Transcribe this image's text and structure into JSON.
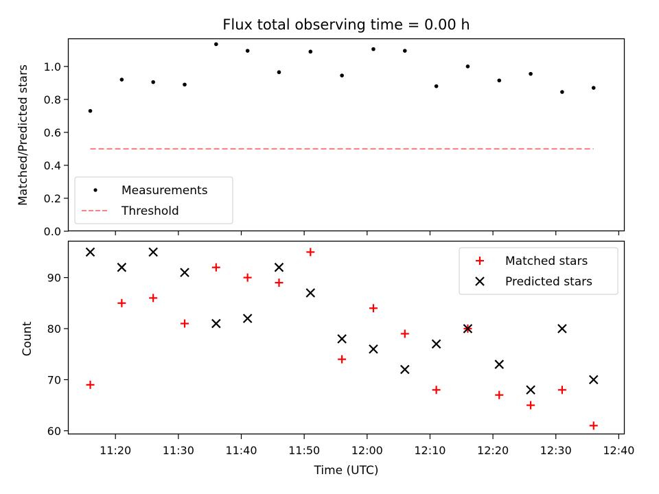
{
  "chart_data": [
    {
      "type": "scatter",
      "title": "Flux total observing time = 0.00 h",
      "ylabel": "Matched/Predicted stars",
      "ylim": [
        0,
        1.17
      ],
      "yticks": [
        0.0,
        0.2,
        0.4,
        0.6,
        0.8,
        1.0
      ],
      "ytick_labels": [
        "0.0",
        "0.2",
        "0.4",
        "0.6",
        "0.8",
        "1.0"
      ],
      "x": [
        "11:16",
        "11:21",
        "11:26",
        "11:31",
        "11:36",
        "11:41",
        "11:46",
        "11:51",
        "11:56",
        "12:01",
        "12:06",
        "12:11",
        "12:16",
        "12:21",
        "12:26",
        "12:31",
        "12:36"
      ],
      "series": [
        {
          "name": "Measurements",
          "marker": "dot",
          "color": "#000000",
          "values": [
            0.73,
            0.92,
            0.905,
            0.89,
            1.135,
            1.095,
            0.965,
            1.09,
            0.945,
            1.105,
            1.095,
            0.88,
            1.0,
            0.915,
            0.955,
            0.845,
            0.87
          ]
        },
        {
          "name": "Threshold",
          "marker": "dashed-line",
          "color": "#ff8080",
          "values": [
            0.5,
            0.5
          ]
        }
      ],
      "legend": "lower-left",
      "grid": false
    },
    {
      "type": "scatter",
      "xlabel": "Time (UTC)",
      "ylabel": "Count",
      "ylim": [
        59.3,
        97.2
      ],
      "yticks": [
        60,
        70,
        80,
        90
      ],
      "ytick_labels": [
        "60",
        "70",
        "80",
        "90"
      ],
      "xticks": [
        "11:20",
        "11:30",
        "11:40",
        "11:50",
        "12:00",
        "12:10",
        "12:20",
        "12:30",
        "12:40"
      ],
      "x": [
        "11:16",
        "11:21",
        "11:26",
        "11:31",
        "11:36",
        "11:41",
        "11:46",
        "11:51",
        "11:56",
        "12:01",
        "12:06",
        "12:11",
        "12:16",
        "12:21",
        "12:26",
        "12:31",
        "12:36"
      ],
      "series": [
        {
          "name": "Matched stars",
          "marker": "plus",
          "color": "#ff0000",
          "values": [
            69,
            85,
            86,
            81,
            92,
            90,
            89,
            95,
            74,
            84,
            79,
            68,
            80,
            67,
            65,
            68,
            61
          ]
        },
        {
          "name": "Predicted stars",
          "marker": "x",
          "color": "#000000",
          "values": [
            95,
            92,
            95,
            91,
            81,
            82,
            92,
            87,
            78,
            76,
            72,
            77,
            80,
            73,
            68,
            80,
            70
          ]
        }
      ],
      "legend": "upper-right",
      "grid": false
    }
  ]
}
